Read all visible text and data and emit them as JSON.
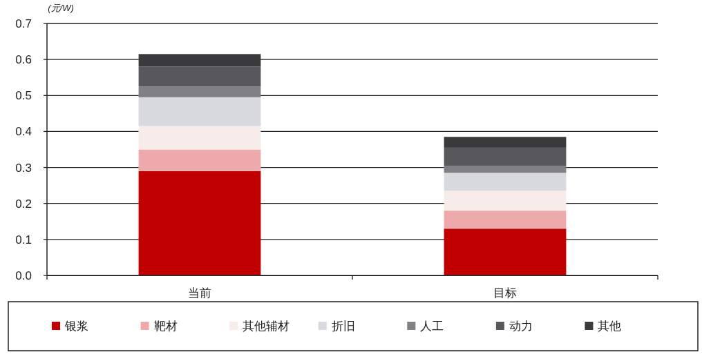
{
  "chart_data": {
    "type": "bar",
    "stacked": true,
    "ylabel": "(元/W)",
    "categories": [
      "当前",
      "目标"
    ],
    "series": [
      {
        "name": "银浆",
        "color": "#c00000",
        "values": [
          0.29,
          0.13
        ]
      },
      {
        "name": "靶材",
        "color": "#eeaaaa",
        "values": [
          0.06,
          0.05
        ]
      },
      {
        "name": "其他辅材",
        "color": "#f8ecea",
        "values": [
          0.065,
          0.055
        ]
      },
      {
        "name": "折旧",
        "color": "#d8dadf",
        "values": [
          0.08,
          0.05
        ]
      },
      {
        "name": "人工",
        "color": "#808085",
        "values": [
          0.03,
          0.02
        ]
      },
      {
        "name": "动力",
        "color": "#58585c",
        "values": [
          0.055,
          0.05
        ]
      },
      {
        "name": "其他",
        "color": "#3a3a3c",
        "values": [
          0.035,
          0.03
        ]
      }
    ],
    "ylim": [
      0,
      0.7
    ],
    "yticks": [
      "0.0",
      0.1,
      0.2,
      0.3,
      0.4,
      0.5,
      0.6,
      0.7
    ],
    "grid": "y",
    "legend": "bottom"
  }
}
